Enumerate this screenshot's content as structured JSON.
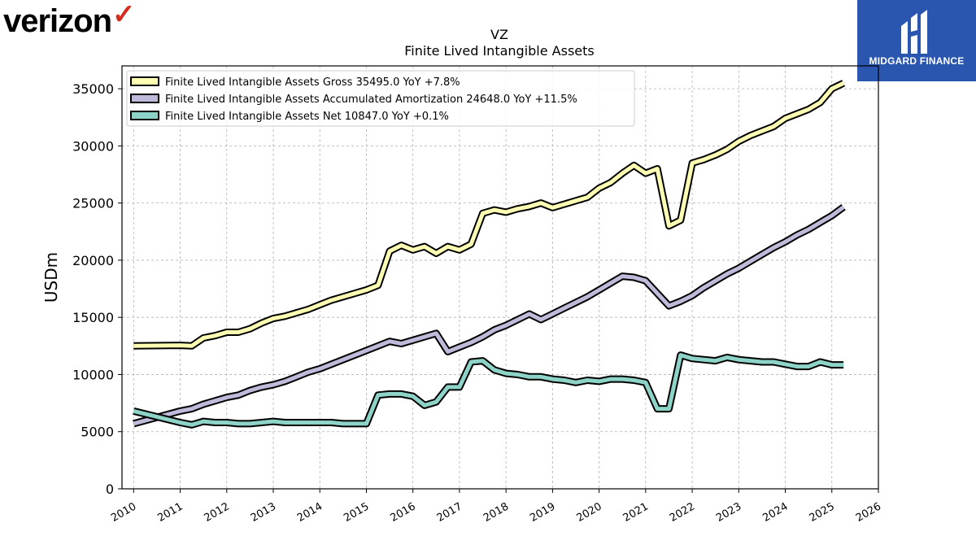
{
  "brand_left": {
    "name": "verizon",
    "check": "✓",
    "check_color": "#d52b1e"
  },
  "brand_right": {
    "name": "MIDGARD FINANCE",
    "bg_color": "#2a56b0"
  },
  "chart_data": {
    "type": "line",
    "title": "VZ",
    "subtitle": "Finite Lived Intangible Assets",
    "ylabel": "USDm",
    "xlabel": "",
    "xlim": [
      2009.75,
      2026.0
    ],
    "ylim": [
      0,
      37000
    ],
    "x_ticks": [
      "2010",
      "2011",
      "2012",
      "2013",
      "2014",
      "2015",
      "2016",
      "2017",
      "2018",
      "2019",
      "2020",
      "2021",
      "2022",
      "2023",
      "2024",
      "2025",
      "2026"
    ],
    "y_ticks": [
      0,
      5000,
      10000,
      15000,
      20000,
      25000,
      30000,
      35000
    ],
    "grid": true,
    "legend_position": "upper-left",
    "series": [
      {
        "name": "Finite Lived Intangible Assets Gross  35495.0 YoY +7.8%",
        "color": "#ffffb3",
        "x": [
          2010.0,
          2011.0,
          2011.25,
          2011.5,
          2011.75,
          2012.0,
          2012.25,
          2012.5,
          2012.75,
          2013.0,
          2013.25,
          2013.5,
          2013.75,
          2014.0,
          2014.25,
          2014.5,
          2014.75,
          2015.0,
          2015.25,
          2015.5,
          2015.75,
          2016.0,
          2016.25,
          2016.5,
          2016.75,
          2017.0,
          2017.25,
          2017.5,
          2017.75,
          2018.0,
          2018.25,
          2018.5,
          2018.75,
          2019.0,
          2019.25,
          2019.5,
          2019.75,
          2020.0,
          2020.25,
          2020.5,
          2020.75,
          2021.0,
          2021.25,
          2021.5,
          2021.75,
          2022.0,
          2022.25,
          2022.5,
          2022.75,
          2023.0,
          2023.25,
          2023.5,
          2023.75,
          2024.0,
          2024.25,
          2024.5,
          2024.75,
          2025.0,
          2025.25
        ],
        "values": [
          12500,
          12550,
          12500,
          13200,
          13400,
          13700,
          13700,
          14000,
          14500,
          14900,
          15100,
          15400,
          15700,
          16100,
          16500,
          16800,
          17100,
          17400,
          17800,
          20800,
          21300,
          20900,
          21200,
          20600,
          21200,
          20900,
          21400,
          24100,
          24400,
          24200,
          24500,
          24700,
          25000,
          24600,
          24900,
          25200,
          25500,
          26300,
          26800,
          27600,
          28300,
          27600,
          28000,
          23000,
          23500,
          28500,
          28800,
          29200,
          29700,
          30400,
          30900,
          31300,
          31700,
          32400,
          32800,
          33200,
          33800,
          35000,
          35495
        ]
      },
      {
        "name": "Finite Lived Intangible Assets Accumulated Amortization  24648.0 YoY +11.5%",
        "color": "#bebada",
        "x": [
          2010.0,
          2011.0,
          2011.25,
          2011.5,
          2011.75,
          2012.0,
          2012.25,
          2012.5,
          2012.75,
          2013.0,
          2013.25,
          2013.5,
          2013.75,
          2014.0,
          2014.25,
          2014.5,
          2014.75,
          2015.0,
          2015.25,
          2015.5,
          2015.75,
          2016.0,
          2016.25,
          2016.5,
          2016.75,
          2017.0,
          2017.25,
          2017.5,
          2017.75,
          2018.0,
          2018.25,
          2018.5,
          2018.75,
          2019.0,
          2019.25,
          2019.5,
          2019.75,
          2020.0,
          2020.25,
          2020.5,
          2020.75,
          2021.0,
          2021.25,
          2021.5,
          2021.75,
          2022.0,
          2022.25,
          2022.5,
          2022.75,
          2023.0,
          2023.25,
          2023.5,
          2023.75,
          2024.0,
          2024.25,
          2024.5,
          2024.75,
          2025.0,
          2025.25
        ],
        "values": [
          5700,
          6800,
          7000,
          7400,
          7700,
          8000,
          8200,
          8600,
          8900,
          9100,
          9400,
          9800,
          10200,
          10500,
          10900,
          11300,
          11700,
          12100,
          12500,
          12900,
          12700,
          13000,
          13300,
          13600,
          12000,
          12400,
          12800,
          13300,
          13900,
          14300,
          14800,
          15300,
          14800,
          15300,
          15800,
          16300,
          16800,
          17400,
          18000,
          18600,
          18500,
          18200,
          17100,
          16000,
          16400,
          16900,
          17600,
          18200,
          18800,
          19300,
          19900,
          20500,
          21100,
          21600,
          22200,
          22700,
          23300,
          23900,
          24648
        ]
      },
      {
        "name": "Finite Lived Intangible Assets Net  10847.0 YoY +0.1%",
        "color": "#8dd3c7",
        "x": [
          2010.0,
          2011.0,
          2011.25,
          2011.5,
          2011.75,
          2012.0,
          2012.25,
          2012.5,
          2012.75,
          2013.0,
          2013.25,
          2013.5,
          2013.75,
          2014.0,
          2014.25,
          2014.5,
          2014.75,
          2015.0,
          2015.25,
          2015.5,
          2015.75,
          2016.0,
          2016.25,
          2016.5,
          2016.75,
          2017.0,
          2017.25,
          2017.5,
          2017.75,
          2018.0,
          2018.25,
          2018.5,
          2018.75,
          2019.0,
          2019.25,
          2019.5,
          2019.75,
          2020.0,
          2020.25,
          2020.5,
          2020.75,
          2021.0,
          2021.25,
          2021.5,
          2021.75,
          2022.0,
          2022.25,
          2022.5,
          2022.75,
          2023.0,
          2023.25,
          2023.5,
          2023.75,
          2024.0,
          2024.25,
          2024.5,
          2024.75,
          2025.0,
          2025.25
        ],
        "values": [
          6800,
          5800,
          5600,
          5900,
          5800,
          5800,
          5700,
          5700,
          5800,
          5900,
          5800,
          5800,
          5800,
          5800,
          5800,
          5700,
          5700,
          5700,
          8200,
          8300,
          8300,
          8100,
          7300,
          7600,
          8900,
          8900,
          11100,
          11200,
          10400,
          10100,
          10000,
          9800,
          9800,
          9600,
          9500,
          9300,
          9500,
          9400,
          9600,
          9600,
          9500,
          9300,
          7000,
          7000,
          11700,
          11400,
          11300,
          11200,
          11500,
          11300,
          11200,
          11100,
          11100,
          10900,
          10700,
          10700,
          11100,
          10847,
          10847
        ]
      }
    ]
  }
}
